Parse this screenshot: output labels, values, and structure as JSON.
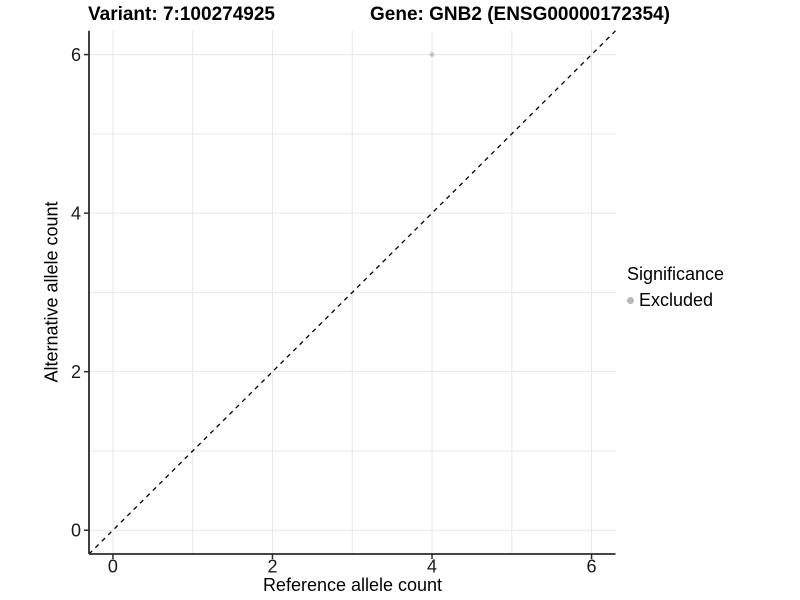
{
  "title": {
    "variant": "Variant: 7:100274925",
    "gene": "Gene: GNB2 (ENSG00000172354)"
  },
  "axes": {
    "x_label": "Reference allele count",
    "y_label": "Alternative allele count"
  },
  "legend": {
    "title": "Significance",
    "items": [
      {
        "label": "Excluded",
        "color": "#b9b9b9",
        "marker": "circle"
      }
    ]
  },
  "chart_data": {
    "type": "scatter",
    "title": "Variant: 7:100274925   Gene: GNB2 (ENSG00000172354)",
    "xlabel": "Reference allele count",
    "ylabel": "Alternative allele count",
    "xlim": [
      -0.3,
      6.3
    ],
    "ylim": [
      -0.3,
      6.3
    ],
    "x_ticks": [
      0,
      2,
      4,
      6
    ],
    "y_ticks": [
      0,
      2,
      4,
      6
    ],
    "x_gridlines": [
      0,
      1,
      2,
      3,
      4,
      5,
      6
    ],
    "y_gridlines": [
      0,
      1,
      2,
      3,
      4,
      5,
      6
    ],
    "grid": true,
    "legend_position": "right",
    "series": [
      {
        "name": "Excluded",
        "type": "scatter",
        "color": "#c2c2c2",
        "points": [
          {
            "x": 4,
            "y": 6
          }
        ]
      }
    ],
    "reference_line": {
      "kind": "identity",
      "linetype": "dashed",
      "color": "#000000",
      "from": [
        -0.3,
        -0.3
      ],
      "to": [
        6.3,
        6.3
      ]
    },
    "colors": {
      "gridline": "#e7e7e7",
      "axis_line": "#2b2b2b",
      "tick_label": "#1a1a1a"
    }
  }
}
